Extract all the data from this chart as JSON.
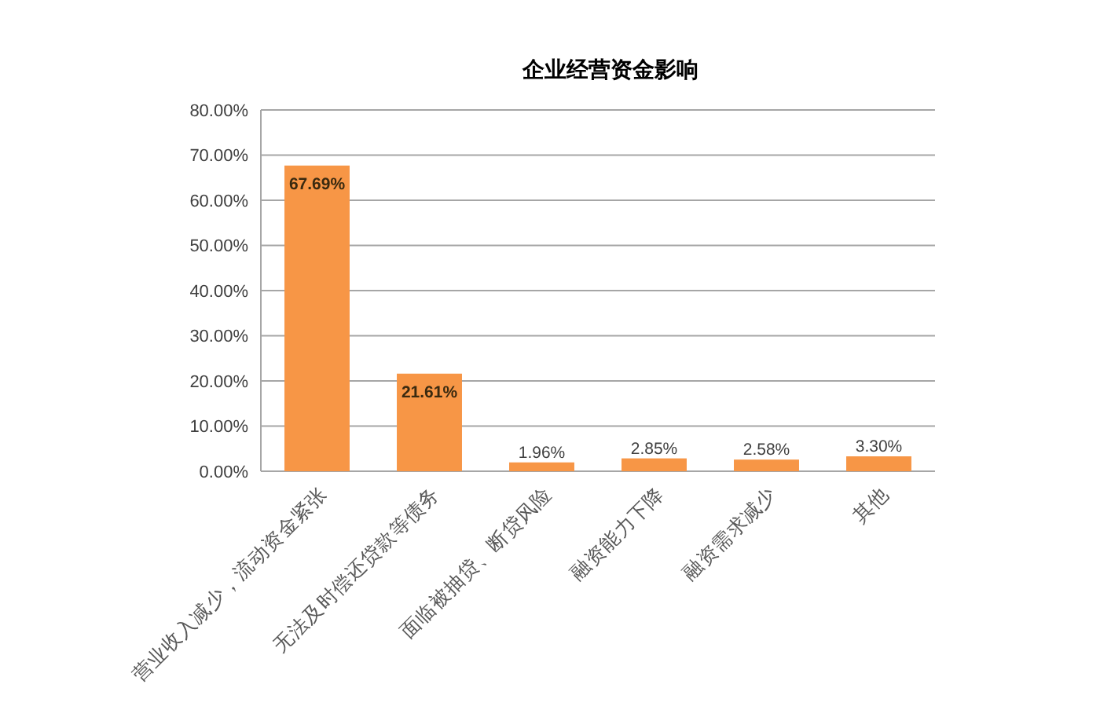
{
  "chart_data": {
    "type": "bar",
    "title": "企业经营资金影响",
    "categories": [
      "营业收入减少，流动资金紧张",
      "无法及时偿还贷款等债务",
      "面临被抽贷、断贷风险",
      "融资能力下降",
      "融资需求减少",
      "其他"
    ],
    "values": [
      67.69,
      21.61,
      1.96,
      2.85,
      2.58,
      3.3
    ],
    "value_labels": [
      "67.69%",
      "21.61%",
      "1.96%",
      "2.85%",
      "2.58%",
      "3.30%"
    ],
    "color": "#f79646",
    "ylim": [
      0,
      80
    ],
    "yticks": [
      {
        "value": 0,
        "label": "0.00%"
      },
      {
        "value": 10,
        "label": "10.00%"
      },
      {
        "value": 20,
        "label": "20.00%"
      },
      {
        "value": 30,
        "label": "30.00%"
      },
      {
        "value": 40,
        "label": "40.00%"
      },
      {
        "value": 50,
        "label": "50.00%"
      },
      {
        "value": 60,
        "label": "60.00%"
      },
      {
        "value": 70,
        "label": "70.00%"
      },
      {
        "value": 80,
        "label": "80.00%"
      }
    ],
    "grid": "y"
  }
}
